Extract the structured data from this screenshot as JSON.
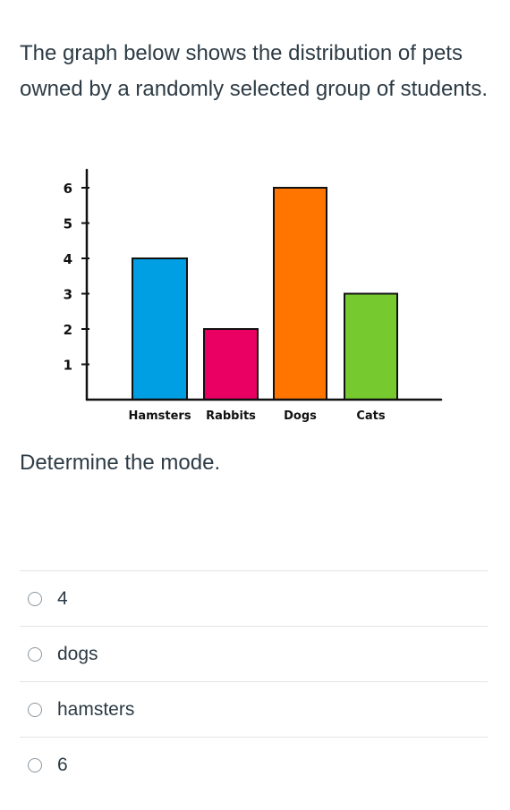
{
  "question": {
    "text": "The graph below shows the distribution of pets owned by a randomly selected group of students."
  },
  "chart_data": {
    "type": "bar",
    "categories": [
      "Hamsters",
      "Rabbits",
      "Dogs",
      "Cats"
    ],
    "values": [
      4,
      2,
      6,
      3
    ],
    "colors": [
      "#009fe3",
      "#ea0063",
      "#ff7500",
      "#76ca2f"
    ],
    "yticks": [
      1,
      2,
      3,
      4,
      5,
      6
    ],
    "ylim": [
      0,
      6.6
    ],
    "grid": false,
    "title": "",
    "xlabel": "",
    "ylabel": ""
  },
  "prompt": "Determine the mode.",
  "options": [
    {
      "label": "4"
    },
    {
      "label": "dogs"
    },
    {
      "label": "hamsters"
    },
    {
      "label": "6"
    }
  ]
}
